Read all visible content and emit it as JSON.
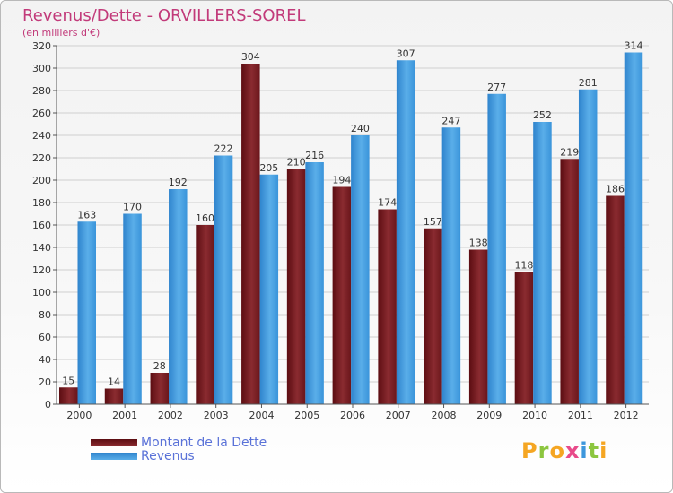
{
  "chart_data": {
    "type": "bar",
    "title": "Revenus/Dette - ORVILLERS-SOREL",
    "subtitle": "(en milliers d'€)",
    "categories": [
      "2000",
      "2001",
      "2002",
      "2003",
      "2004",
      "2005",
      "2006",
      "2007",
      "2008",
      "2009",
      "2010",
      "2011",
      "2012"
    ],
    "series": [
      {
        "name": "Montant de la Dette",
        "color": "#7a1e24",
        "values": [
          15,
          14,
          28,
          160,
          304,
          210,
          194,
          174,
          157,
          138,
          118,
          219,
          186
        ]
      },
      {
        "name": "Revenus",
        "color": "#3d97dc",
        "values": [
          163,
          170,
          192,
          222,
          205,
          216,
          240,
          307,
          247,
          277,
          252,
          281,
          314
        ]
      }
    ],
    "ylim": [
      0,
      320
    ],
    "yticks": [
      0,
      20,
      40,
      60,
      80,
      100,
      120,
      140,
      160,
      180,
      200,
      220,
      240,
      260,
      280,
      300,
      320
    ],
    "grid": true,
    "legend_position": "bottom-left"
  },
  "brand": {
    "logo_text": "Proxiti"
  }
}
